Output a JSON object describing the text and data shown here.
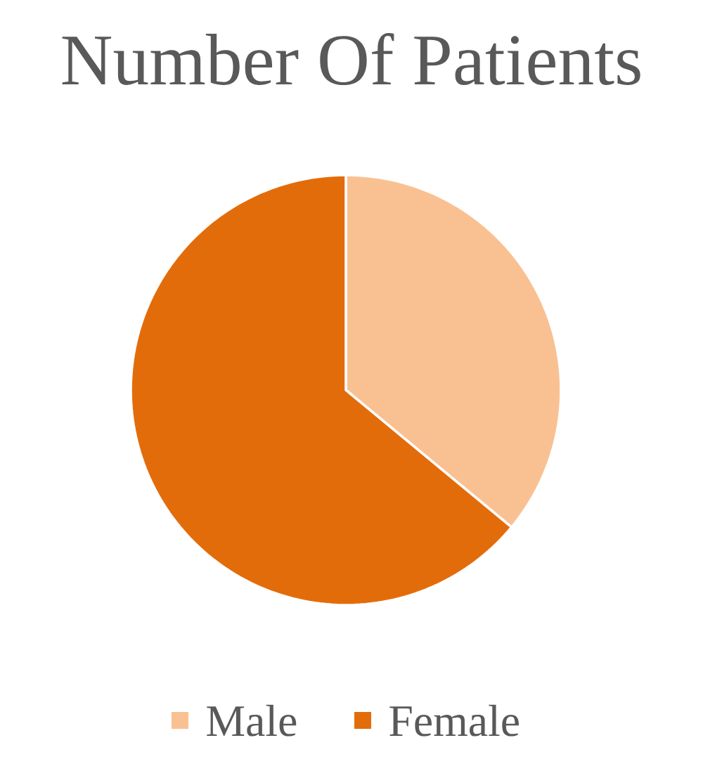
{
  "chart_data": {
    "type": "pie",
    "title": "Number Of Patients",
    "categories": [
      "Male",
      "Female"
    ],
    "values": [
      36,
      64
    ],
    "colors": [
      "#f9c192",
      "#e36c0a"
    ],
    "legend": "bottom"
  }
}
